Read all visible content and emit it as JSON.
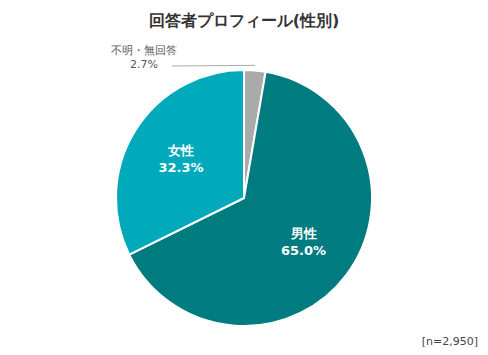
{
  "chart_data": {
    "type": "pie",
    "title": "回答者プロフィール(性別)",
    "categories": [
      "不明・無回答",
      "男性",
      "女性"
    ],
    "values": [
      2.7,
      65.0,
      32.3
    ],
    "value_labels": [
      "2.7%",
      "65.0%",
      "32.3%"
    ],
    "colors": [
      "#AAAAAA",
      "#007B80",
      "#00AABB"
    ],
    "data_labels": true,
    "annotations": [
      "[n=2,950]"
    ]
  }
}
